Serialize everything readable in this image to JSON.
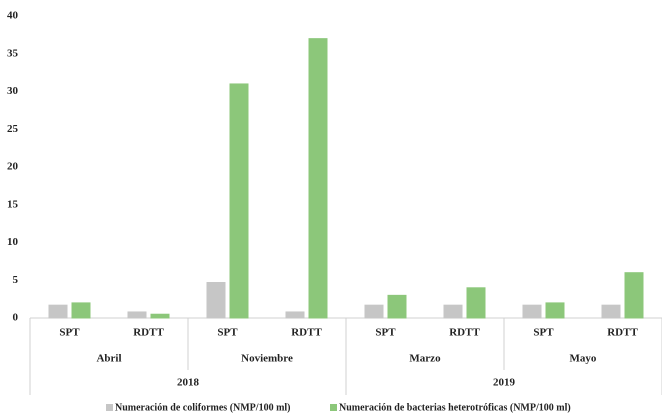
{
  "chart_data": {
    "type": "bar",
    "categories": [
      "SPT",
      "RDTT",
      "SPT",
      "RDTT",
      "SPT",
      "RDTT",
      "SPT",
      "RDTT"
    ],
    "months": [
      "Abril",
      "Noviembre",
      "Marzo",
      "Mayo"
    ],
    "years": [
      "2018",
      "2019"
    ],
    "series": [
      {
        "name": "Numeración de coliformes (NMP/100 ml)",
        "color": "#c6c6c6",
        "values": [
          1.7,
          0.8,
          4.7,
          0.8,
          1.7,
          1.7,
          1.7,
          1.7
        ]
      },
      {
        "name": "Numeración de bacterias heterotróficas (NMP/100 ml)",
        "color": "#8cc77a",
        "values": [
          2,
          0.5,
          31,
          37,
          3,
          4,
          2,
          6
        ]
      }
    ],
    "ylim": [
      0,
      40
    ],
    "yticks": [
      0,
      5,
      10,
      15,
      20,
      25,
      30,
      35,
      40
    ]
  }
}
